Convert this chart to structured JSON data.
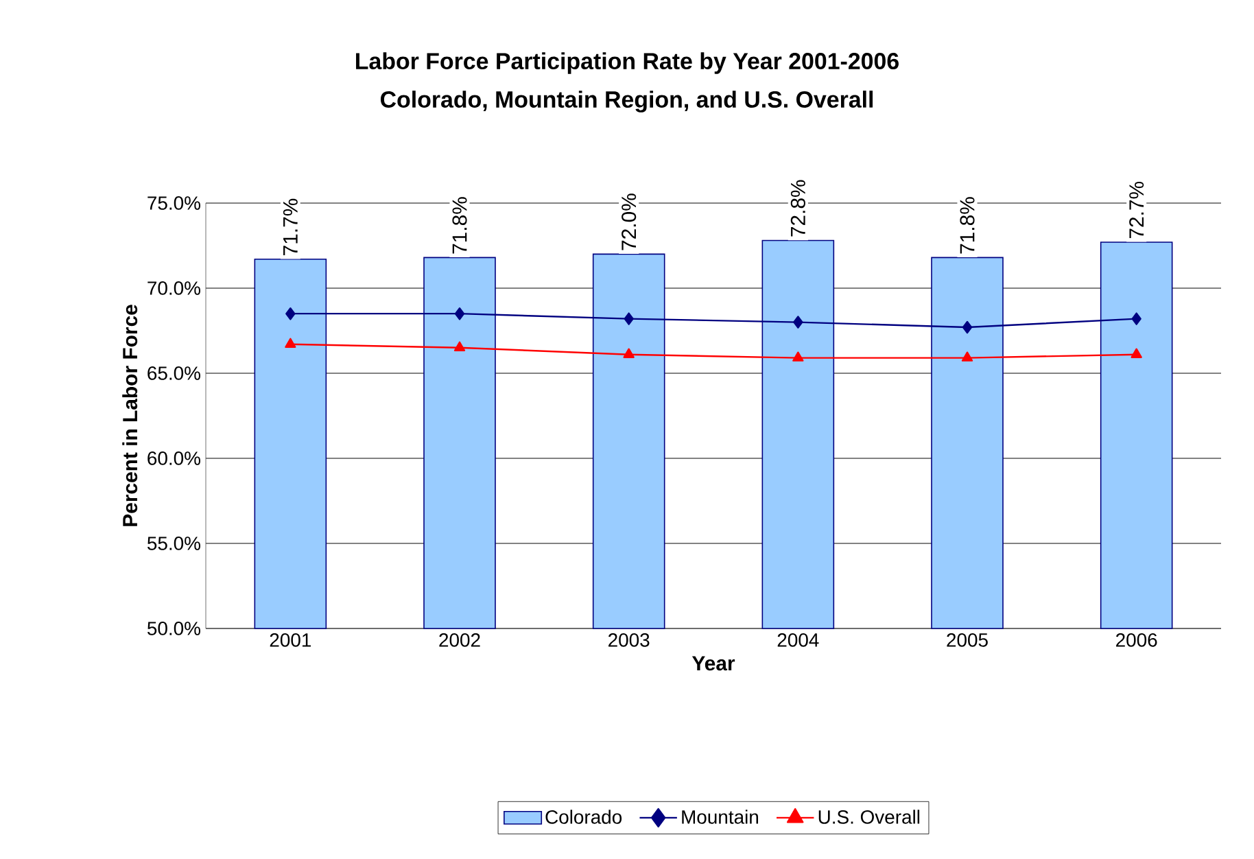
{
  "chart_data": {
    "type": "bar",
    "title": "Labor Force Participation Rate by Year 2001-2006",
    "subtitle": "Colorado, Mountain Region, and U.S. Overall",
    "xlabel": "Year",
    "ylabel": "Percent in Labor Force",
    "categories": [
      "2001",
      "2002",
      "2003",
      "2004",
      "2005",
      "2006"
    ],
    "ylim": [
      50,
      75
    ],
    "yticks": [
      {
        "value": 50,
        "label": "50.0%"
      },
      {
        "value": 55,
        "label": "55.0%"
      },
      {
        "value": 60,
        "label": "60.0%"
      },
      {
        "value": 65,
        "label": "65.0%"
      },
      {
        "value": 70,
        "label": "70.0%"
      },
      {
        "value": 75,
        "label": "75.0%"
      }
    ],
    "grid": "y",
    "legend": "bottom",
    "series": [
      {
        "name": "Colorado",
        "color": "#99ccff",
        "values": [
          71.7,
          71.8,
          72.0,
          72.8,
          71.8,
          72.7
        ],
        "value_labels": [
          "71.7%",
          "71.8%",
          "72.0%",
          "72.8%",
          "71.8%",
          "72.7%"
        ]
      },
      {
        "name": "Mountain",
        "type": "line",
        "color": "#000080",
        "marker": "diamond",
        "values": [
          68.5,
          68.5,
          68.2,
          68.0,
          67.7,
          68.2
        ]
      },
      {
        "name": "U.S. Overall",
        "type": "line",
        "color": "#ff0000",
        "marker": "triangle",
        "values": [
          66.7,
          66.5,
          66.1,
          65.9,
          65.9,
          66.1
        ]
      }
    ]
  }
}
